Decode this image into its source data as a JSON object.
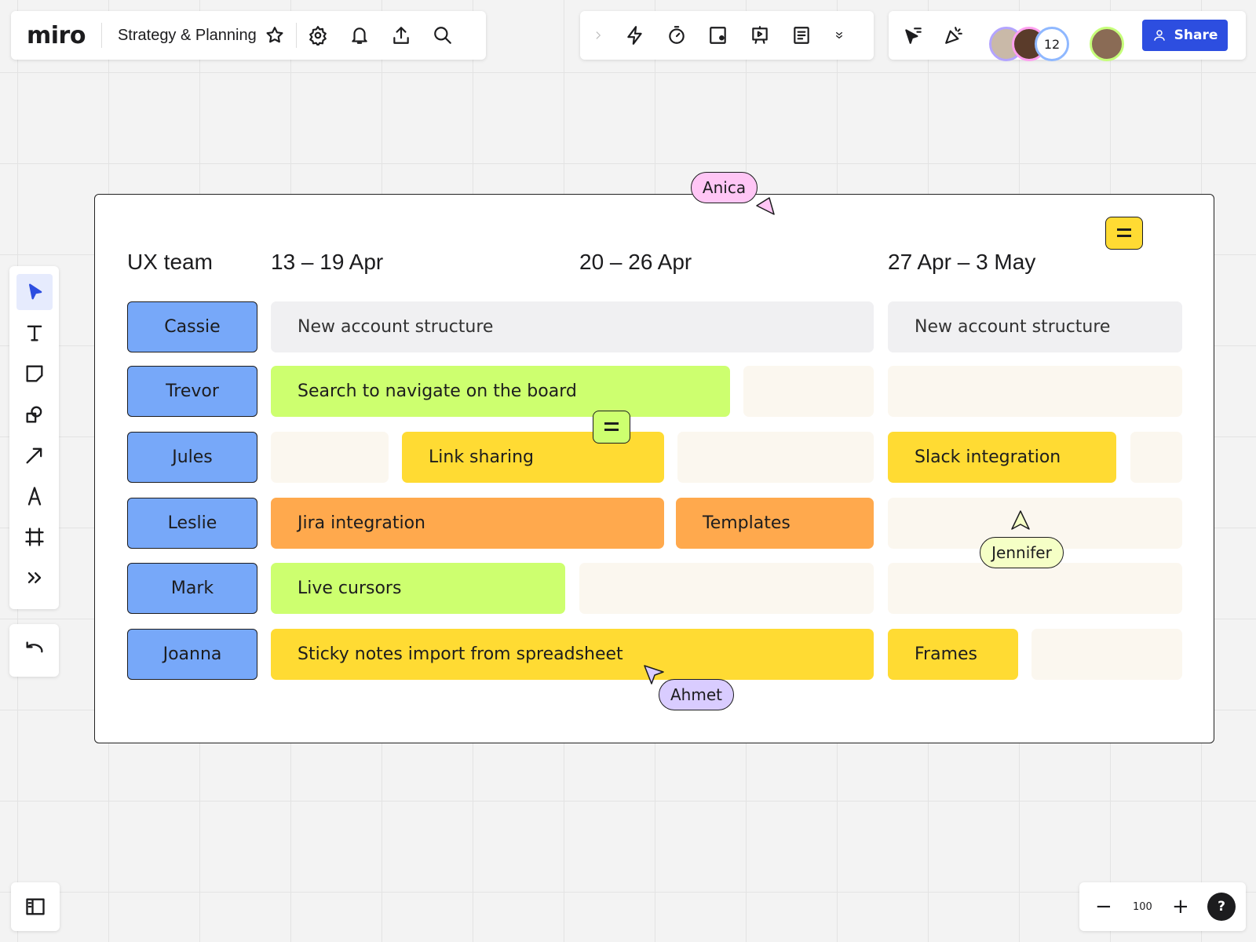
{
  "topbar": {
    "logo": "miro",
    "board_title": "Strategy & Planning",
    "icons": [
      "star-icon",
      "gear-icon",
      "bell-icon",
      "upload-icon",
      "search-icon"
    ]
  },
  "toolbar_mid": {
    "icons": [
      "chevron-right-icon",
      "lightning-icon",
      "timer-icon",
      "card-icon",
      "presentation-icon",
      "notes-icon",
      "chevron-double-down-icon"
    ]
  },
  "toolbar_right": {
    "icons": [
      "cursor-filter-icon",
      "celebrate-icon"
    ],
    "collaborator_count": "12",
    "share_label": "Share",
    "accent": "#2d4ee0"
  },
  "left_tools": [
    "select-icon",
    "text-icon",
    "sticky-note-icon",
    "shapes-icon",
    "arrow-icon",
    "pen-icon",
    "frame-icon",
    "more-icon"
  ],
  "undo_icon": "undo-icon",
  "zoom": {
    "level": "100",
    "minus": "−",
    "plus": "+",
    "help": "?"
  },
  "board": {
    "headers": {
      "team": "UX team",
      "week1": "13 – 19 Apr",
      "week2": "20 – 26 Apr",
      "week3": "27 Apr – 3 May"
    },
    "rows": [
      {
        "name": "Cassie",
        "tasks": [
          "New account structure",
          "New account structure"
        ]
      },
      {
        "name": "Trevor",
        "tasks": [
          "Search to navigate on the board"
        ]
      },
      {
        "name": "Jules",
        "tasks": [
          "Link sharing",
          "Slack integration"
        ]
      },
      {
        "name": "Leslie",
        "tasks": [
          "Jira integration",
          "Templates"
        ]
      },
      {
        "name": "Mark",
        "tasks": [
          "Live cursors"
        ]
      },
      {
        "name": "Joanna",
        "tasks": [
          "Sticky notes import from spreadsheet",
          "Frames"
        ]
      }
    ],
    "colors": {
      "name": "#77a8f9",
      "green": "#cdff6f",
      "yellow": "#ffdb33",
      "orange": "#ffa94d",
      "gray": "#f0f0f2",
      "empty": "#fbf7ef"
    }
  },
  "cursors": [
    {
      "name": "Anica",
      "color": "#ffc6f5"
    },
    {
      "name": "Jennifer",
      "color": "#f5ffc6"
    },
    {
      "name": "Ahmet",
      "color": "#d9ccff"
    }
  ]
}
